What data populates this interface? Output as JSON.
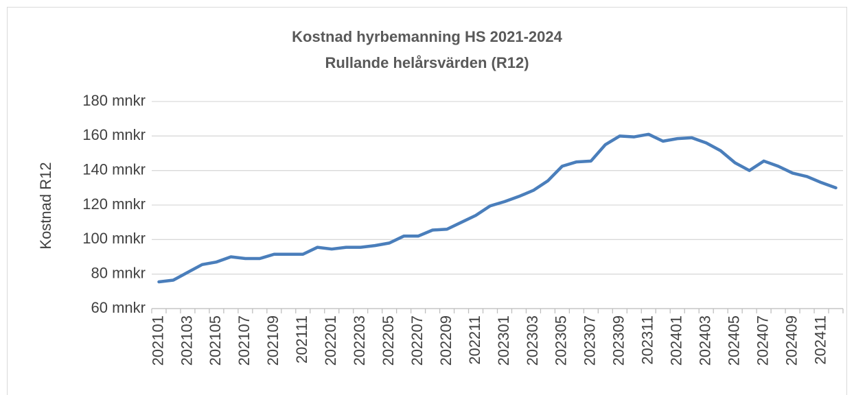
{
  "chart_data": {
    "type": "line",
    "title": "Kostnad hyrbemanning HS 2021-2024",
    "subtitle": "Rullande helårsvärden (R12)",
    "y_label": "Kostnad R12",
    "categories": [
      "202101",
      null,
      "202103",
      null,
      "202105",
      null,
      "202107",
      null,
      "202109",
      null,
      "202111",
      null,
      "202201",
      null,
      "202203",
      null,
      "202205",
      null,
      "202207",
      null,
      "202209",
      null,
      "202211",
      null,
      "202301",
      null,
      "202303",
      null,
      "202305",
      null,
      "202307",
      null,
      "202309",
      null,
      "202311",
      null,
      "202401",
      null,
      "202403",
      null,
      "202405",
      null,
      "202407",
      null,
      "202409",
      null,
      "202411",
      null
    ],
    "series": [
      {
        "name": "Kostnad R12",
        "color": "#4a7ebb",
        "values": [
          75.5,
          76.5,
          81,
          85.5,
          87,
          90,
          89,
          89,
          91.5,
          91.5,
          91.5,
          95.5,
          94.5,
          95.5,
          95.5,
          96.5,
          98,
          102,
          102,
          105.5,
          106,
          110,
          114,
          119.5,
          122,
          125,
          128.5,
          134,
          142.5,
          145,
          145.5,
          155,
          160,
          159.5,
          161,
          157,
          158.5,
          159,
          156,
          151.5,
          144.5,
          140,
          145.5,
          142.5,
          138.5,
          136.5,
          133,
          130
        ]
      }
    ],
    "ylim": [
      60,
      180
    ],
    "yticks": [
      {
        "value": 60,
        "label": "60 mnkr"
      },
      {
        "value": 80,
        "label": "80 mnkr"
      },
      {
        "value": 100,
        "label": "100 mnkr"
      },
      {
        "value": 120,
        "label": "120 mnkr"
      },
      {
        "value": 140,
        "label": "140 mnkr"
      },
      {
        "value": 160,
        "label": "160 mnkr"
      },
      {
        "value": 180,
        "label": "180 mnkr"
      }
    ],
    "grid": true
  }
}
